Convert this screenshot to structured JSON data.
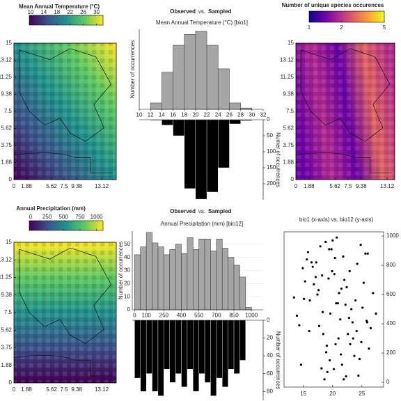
{
  "chart_data": [
    {
      "type": "map",
      "title": "Mean Annual Temperature (°C)",
      "colormap": [
        "#440154",
        "#3b528b",
        "#21918c",
        "#5ec962",
        "#fde725"
      ],
      "clim": [
        9.6,
        32
      ],
      "cticks": [
        10,
        14,
        18,
        22,
        26,
        30
      ],
      "xlim": [
        0,
        15.3
      ],
      "xticks": [
        0,
        1.88,
        5.62,
        7.5,
        9.38,
        13.12
      ],
      "ylim": [
        0,
        15
      ],
      "yticks": [
        0,
        1.88,
        3.75,
        5.62,
        7.5,
        9.38,
        11.25,
        13.12,
        15
      ]
    },
    {
      "type": "histogram",
      "title": "Mean Annual Temperature (°C) [bio1]",
      "joiner": "vs.",
      "bins": [
        12,
        14,
        16,
        18,
        20,
        22,
        24,
        26,
        28,
        30,
        32
      ],
      "series": [
        {
          "name": "Observed",
          "color": "#a6a6a6",
          "values": [
            15,
            88,
            152,
            178,
            185,
            152,
            96,
            15,
            3,
            0
          ]
        },
        {
          "name": "Sampled",
          "color": "#000000",
          "axis": "y2",
          "values": [
            2,
            17,
            50,
            215,
            248,
            226,
            150,
            13,
            3,
            0
          ]
        }
      ],
      "xlim": [
        10,
        32
      ],
      "xticks": [
        10,
        12,
        14,
        16,
        18,
        20,
        22,
        24,
        26,
        28,
        30,
        32
      ],
      "ylim": [
        0,
        190
      ],
      "ylabel": "Number of occurrences",
      "y2lim": [
        0,
        250
      ],
      "y2ticks": [
        0,
        50,
        100,
        150,
        200
      ],
      "y2label": "Numer of occurrences"
    },
    {
      "type": "map",
      "title": "Number of unique species occurences",
      "colormap": [
        "#0d0887",
        "#6a00a8",
        "#b12a90",
        "#e16462",
        "#fca636",
        "#f0f921"
      ],
      "clim": [
        1,
        5
      ],
      "clog": true,
      "cticks": [
        1,
        2,
        5
      ],
      "xlim": [
        0,
        14.2
      ],
      "xticks": [
        0,
        1.88,
        5.62,
        7.5,
        9.38,
        13.12
      ],
      "ylim": [
        0,
        15
      ],
      "yticks": [
        0,
        1.88,
        3.75,
        5.62,
        7.5,
        9.38,
        11.25,
        13.12,
        15
      ]
    },
    {
      "type": "map",
      "title": "Annual Precipitation (mm)",
      "colormap": [
        "#440154",
        "#3b528b",
        "#21918c",
        "#5ec962",
        "#fde725"
      ],
      "clim": [
        -20,
        1100
      ],
      "cticks": [
        0,
        250,
        500,
        750,
        1000
      ],
      "xlim": [
        0,
        15.3
      ],
      "xticks": [
        0,
        1.88,
        5.62,
        7.5,
        9.38,
        13.12
      ],
      "ylim": [
        0,
        15
      ],
      "yticks": [
        0,
        1.88,
        3.75,
        5.62,
        7.5,
        9.38,
        11.25,
        13.12,
        15
      ]
    },
    {
      "type": "histogram",
      "title": "Annual Precipitation (mm) [bio12]",
      "joiner": "vs.",
      "bins": [
        0,
        50,
        100,
        150,
        200,
        250,
        300,
        350,
        400,
        450,
        500,
        550,
        600,
        650,
        700,
        750,
        800,
        850,
        900,
        950,
        1000,
        1050
      ],
      "series": [
        {
          "name": "Observed",
          "color": "#a6a6a6",
          "values": [
            42,
            48,
            59,
            51,
            48,
            42,
            46,
            50,
            43,
            55,
            46,
            54,
            54,
            45,
            54,
            47,
            40,
            34,
            25,
            2,
            0
          ]
        },
        {
          "name": "Sampled",
          "color": "#000000",
          "axis": "y2",
          "values": [
            65,
            80,
            60,
            80,
            85,
            55,
            70,
            60,
            75,
            55,
            80,
            60,
            70,
            85,
            65,
            75,
            55,
            60,
            45,
            0,
            0
          ]
        }
      ],
      "xlim": [
        -20,
        1100
      ],
      "xticks": [
        0,
        100,
        250,
        400,
        550,
        700,
        850,
        1000
      ],
      "ylim": [
        0,
        60
      ],
      "yticks": [
        0,
        10,
        20,
        30,
        40,
        50
      ],
      "ylabel": "Number of occurrences",
      "y2lim": [
        0,
        90
      ],
      "y2ticks": [
        0,
        20,
        40,
        60,
        80
      ],
      "y2label": "Number of occurrences"
    },
    {
      "type": "scatter",
      "title": "bio1 (x-axis) vs. bio12 (y-axis)",
      "color": "#000000",
      "x": [
        17.2,
        21.5,
        19.8,
        24.1,
        14.6,
        22.9,
        18.3,
        26.2,
        20.7,
        16.1,
        23.4,
        19.1,
        25.6,
        21.0,
        15.3,
        18.9,
        22.2,
        24.8,
        17.7,
        20.3,
        13.9,
        26.9,
        19.5,
        21.8,
        23.0,
        16.8,
        25.1,
        18.1,
        22.6,
        20.0,
        14.9,
        24.4,
        17.4,
        21.3,
        19.3,
        23.7,
        15.8,
        26.5,
        20.9,
        18.6,
        22.4,
        16.4,
        24.9,
        19.9,
        21.6,
        13.4,
        25.8,
        17.9,
        23.2,
        20.5,
        15.6,
        22.0,
        18.4,
        24.6,
        19.6,
        21.1,
        16.6,
        26.0,
        20.2,
        17.1,
        23.9,
        14.3,
        22.8,
        19.0,
        25.3,
        18.8,
        21.9,
        16.0,
        24.2,
        20.6,
        27.4,
        17.6,
        22.3,
        19.4,
        23.5,
        15.1,
        21.4,
        18.2,
        25.9,
        20.4
      ],
      "y": [
        820,
        640,
        910,
        350,
        120,
        760,
        480,
        230,
        990,
        560,
        410,
        70,
        880,
        300,
        690,
        205,
        530,
        940,
        385,
        740,
        455,
        610,
        150,
        860,
        260,
        670,
        510,
        95,
        330,
        970,
        780,
        45,
        600,
        430,
        710,
        180,
        890,
        370,
        540,
        20,
        650,
        820,
        275,
        760,
        120,
        580,
        420,
        930,
        500,
        260,
        840,
        700,
        330,
        160,
        470,
        610,
        790,
        880,
        90,
        720,
        560,
        390,
        440,
        250,
        680,
        960,
        20,
        350,
        810,
        540,
        470,
        630,
        40,
        910,
        300,
        570,
        190,
        730,
        410,
        850
      ],
      "xlim": [
        11.7,
        28.7
      ],
      "xticks": [
        15,
        20,
        25
      ],
      "ylim": [
        -33,
        1029
      ],
      "yticks": [
        0,
        200,
        400,
        600,
        800,
        1000
      ]
    }
  ]
}
